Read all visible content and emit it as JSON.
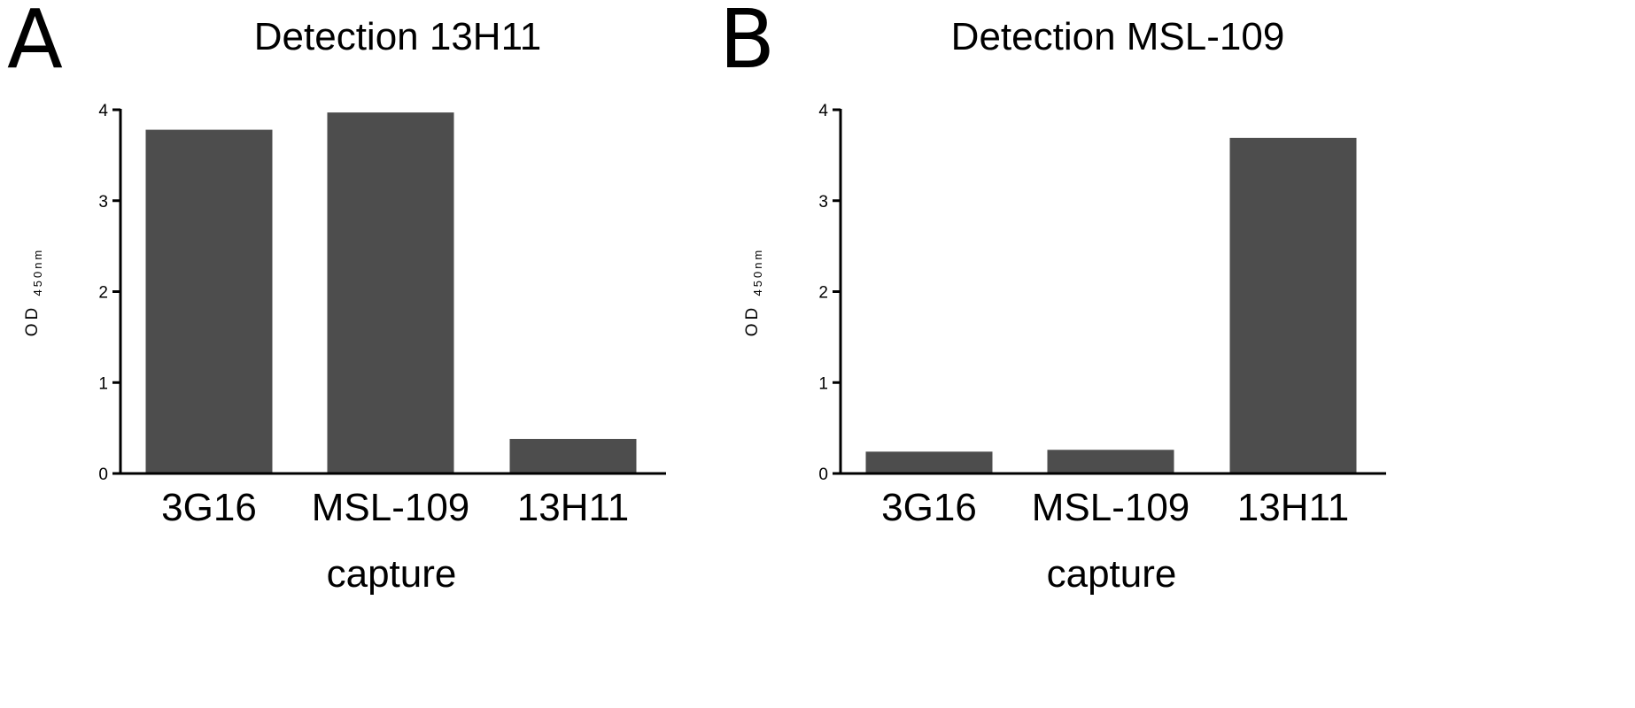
{
  "chart_data": [
    {
      "type": "bar",
      "panel_label": "A",
      "title": "Detection 13H11",
      "xlabel": "capture",
      "ylabel": "OD",
      "ylabel_subscript": "450nm",
      "categories": [
        "3G16",
        "MSL-109",
        "13H11"
      ],
      "values": [
        3.78,
        3.97,
        0.38
      ],
      "ylim": [
        0,
        4
      ],
      "yticks": [
        0,
        1,
        2,
        3,
        4
      ],
      "grid": false,
      "bar_color": "#4d4d4d"
    },
    {
      "type": "bar",
      "panel_label": "B",
      "title": "Detection MSL-109",
      "xlabel": "capture",
      "ylabel": "OD",
      "ylabel_subscript": "450nm",
      "categories": [
        "3G16",
        "MSL-109",
        "13H11"
      ],
      "values": [
        0.24,
        0.26,
        3.69
      ],
      "ylim": [
        0,
        4
      ],
      "yticks": [
        0,
        1,
        2,
        3,
        4
      ],
      "grid": false,
      "bar_color": "#4d4d4d"
    }
  ]
}
